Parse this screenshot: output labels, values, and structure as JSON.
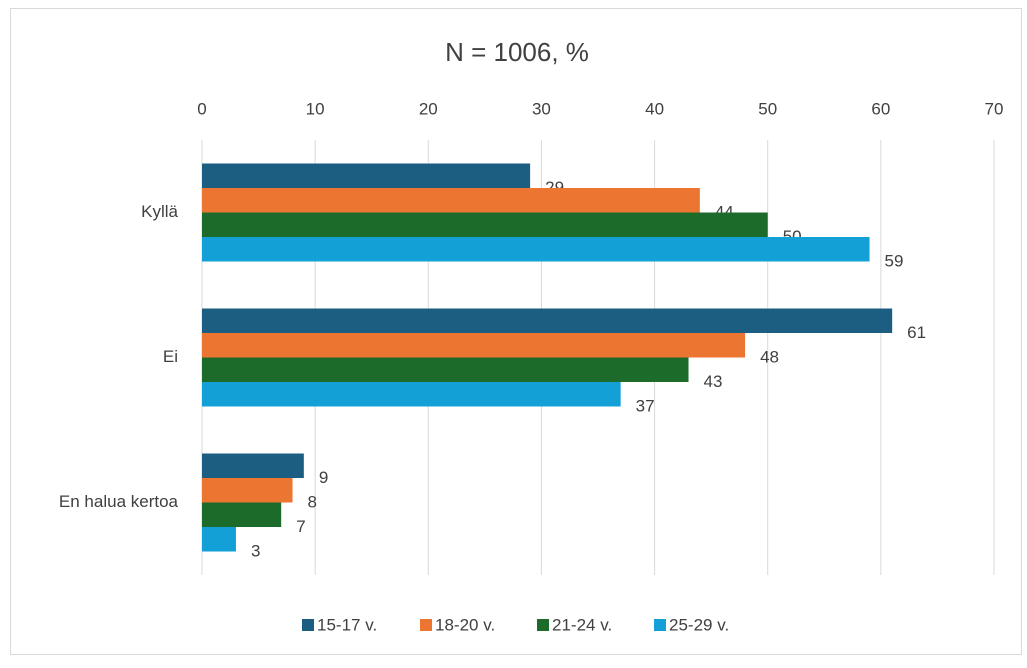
{
  "chart_data": {
    "type": "bar",
    "orientation": "horizontal",
    "title": "N = 1006, %",
    "categories": [
      "Kyllä",
      "Ei",
      "En halua kertoa"
    ],
    "series": [
      {
        "name": "15-17 v.",
        "color": "#1b5e82",
        "values": [
          29,
          61,
          9
        ]
      },
      {
        "name": "18-20 v.",
        "color": "#ed7532",
        "values": [
          44,
          48,
          8
        ]
      },
      {
        "name": "21-24 v.",
        "color": "#1d6b2b",
        "values": [
          50,
          43,
          7
        ]
      },
      {
        "name": "25-29 v.",
        "color": "#12a0d7",
        "values": [
          59,
          37,
          3
        ]
      }
    ],
    "xlim": [
      0,
      70
    ],
    "xticks": [
      0,
      10,
      20,
      30,
      40,
      50,
      60,
      70
    ],
    "grid": true,
    "legend": "bottom"
  }
}
